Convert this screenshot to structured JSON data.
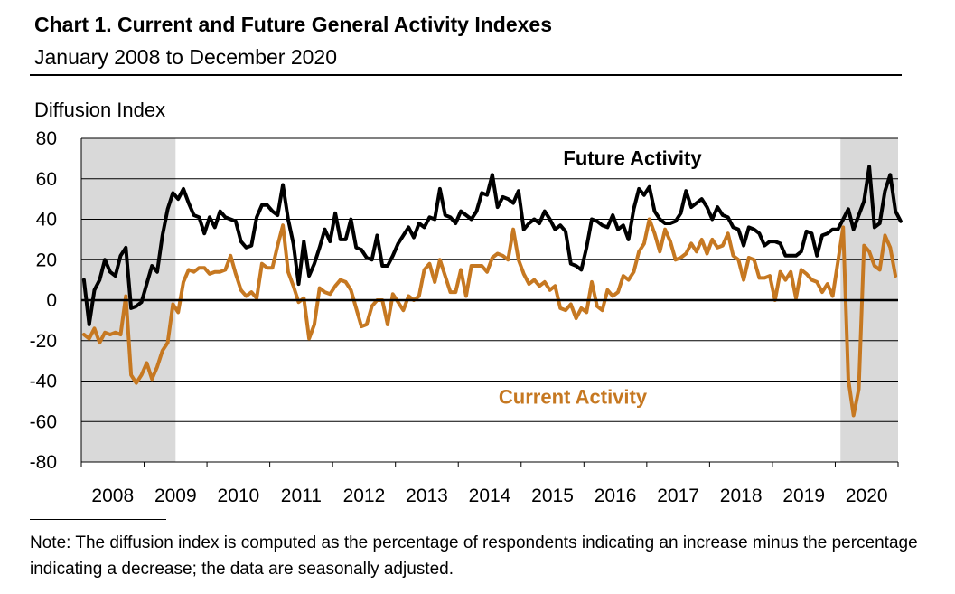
{
  "chart_data": {
    "type": "line",
    "title": "Chart 1. Current and Future General Activity Indexes",
    "subtitle": "January 2008 to December 2020",
    "ylabel": "Diffusion Index",
    "xlabel": "",
    "ylim": [
      -80,
      80
    ],
    "yticks": [
      "80",
      "60",
      "40",
      "20",
      "0",
      "-20",
      "-40",
      "-60",
      "-80"
    ],
    "year_labels": [
      "2008",
      "2009",
      "2010",
      "2011",
      "2012",
      "2013",
      "2014",
      "2015",
      "2016",
      "2017",
      "2018",
      "2019",
      "2020"
    ],
    "xlim": [
      "2008-01",
      "2020-12"
    ],
    "grid": "horizontal",
    "recessions": [
      {
        "start": "2008-01",
        "end": "2009-06"
      },
      {
        "start": "2020-02",
        "end": "2020-12"
      }
    ],
    "series": [
      {
        "name": "Future Activity",
        "color": "#000000",
        "values": [
          10,
          -12,
          5,
          10,
          20,
          14,
          12,
          22,
          26,
          -4,
          -3,
          -1,
          8,
          17,
          14,
          32,
          45,
          53,
          50,
          55,
          48,
          42,
          41,
          33,
          41,
          36,
          44,
          41,
          40,
          39,
          29,
          26,
          27,
          41,
          47,
          47,
          44,
          42,
          57,
          40,
          28,
          8,
          29,
          12,
          18,
          26,
          35,
          29,
          43,
          30,
          30,
          40,
          26,
          25,
          21,
          20,
          32,
          17,
          17,
          22,
          28,
          32,
          36,
          31,
          38,
          36,
          41,
          40,
          55,
          42,
          41,
          38,
          44,
          42,
          40,
          44,
          53,
          52,
          62,
          46,
          51,
          50,
          48,
          54,
          35,
          38,
          40,
          38,
          44,
          40,
          35,
          37,
          34,
          18,
          17,
          15,
          26,
          40,
          39,
          37,
          36,
          42,
          35,
          37,
          30,
          45,
          55,
          52,
          56,
          44,
          40,
          38,
          38,
          39,
          43,
          54,
          46,
          48,
          50,
          46,
          40,
          46,
          42,
          41,
          36,
          35,
          27,
          36,
          35,
          33,
          27,
          29,
          29,
          28,
          22,
          22,
          22,
          24,
          34,
          33,
          22,
          32,
          33,
          35,
          35,
          40,
          45,
          35,
          42,
          49,
          66,
          36,
          38,
          54,
          62,
          44,
          39
        ]
      },
      {
        "name": "Current Activity",
        "color": "#c67821",
        "values": [
          -17,
          -19,
          -14,
          -21,
          -16,
          -17,
          -16,
          -17,
          2,
          -37,
          -41,
          -37,
          -31,
          -39,
          -33,
          -25,
          -21,
          -2,
          -6,
          9,
          15,
          14,
          16,
          16,
          13,
          14,
          14,
          15,
          22,
          13,
          5,
          2,
          4,
          1,
          18,
          16,
          16,
          27,
          37,
          14,
          7,
          -1,
          1,
          -19,
          -12,
          6,
          4,
          3,
          7,
          10,
          9,
          5,
          -4,
          -13,
          -12,
          -3,
          0,
          0,
          -12,
          3,
          -1,
          -5,
          2,
          0,
          2,
          15,
          18,
          9,
          20,
          12,
          4,
          4,
          15,
          2,
          17,
          17,
          17,
          14,
          21,
          23,
          22,
          20,
          35,
          20,
          13,
          8,
          10,
          7,
          9,
          5,
          7,
          -4,
          -5,
          -2,
          -9,
          -4,
          -6,
          9,
          -3,
          -5,
          5,
          2,
          4,
          12,
          10,
          14,
          24,
          28,
          40,
          33,
          24,
          35,
          29,
          20,
          21,
          23,
          28,
          24,
          30,
          23,
          30,
          26,
          27,
          33,
          22,
          20,
          10,
          21,
          20,
          11,
          11,
          12,
          0,
          14,
          10,
          14,
          1,
          15,
          13,
          10,
          9,
          4,
          8,
          2,
          19,
          36,
          -39,
          -57,
          -44,
          27,
          24,
          17,
          15,
          32,
          26,
          12
        ]
      }
    ],
    "annotations": [
      {
        "text": "Future Activity",
        "series": "Future Activity"
      },
      {
        "text": "Current Activity",
        "series": "Current Activity"
      }
    ]
  },
  "note": "Note: The diffusion index is computed as the percentage of respondents indicating an increase minus the percentage indicating a decrease; the data are seasonally adjusted."
}
